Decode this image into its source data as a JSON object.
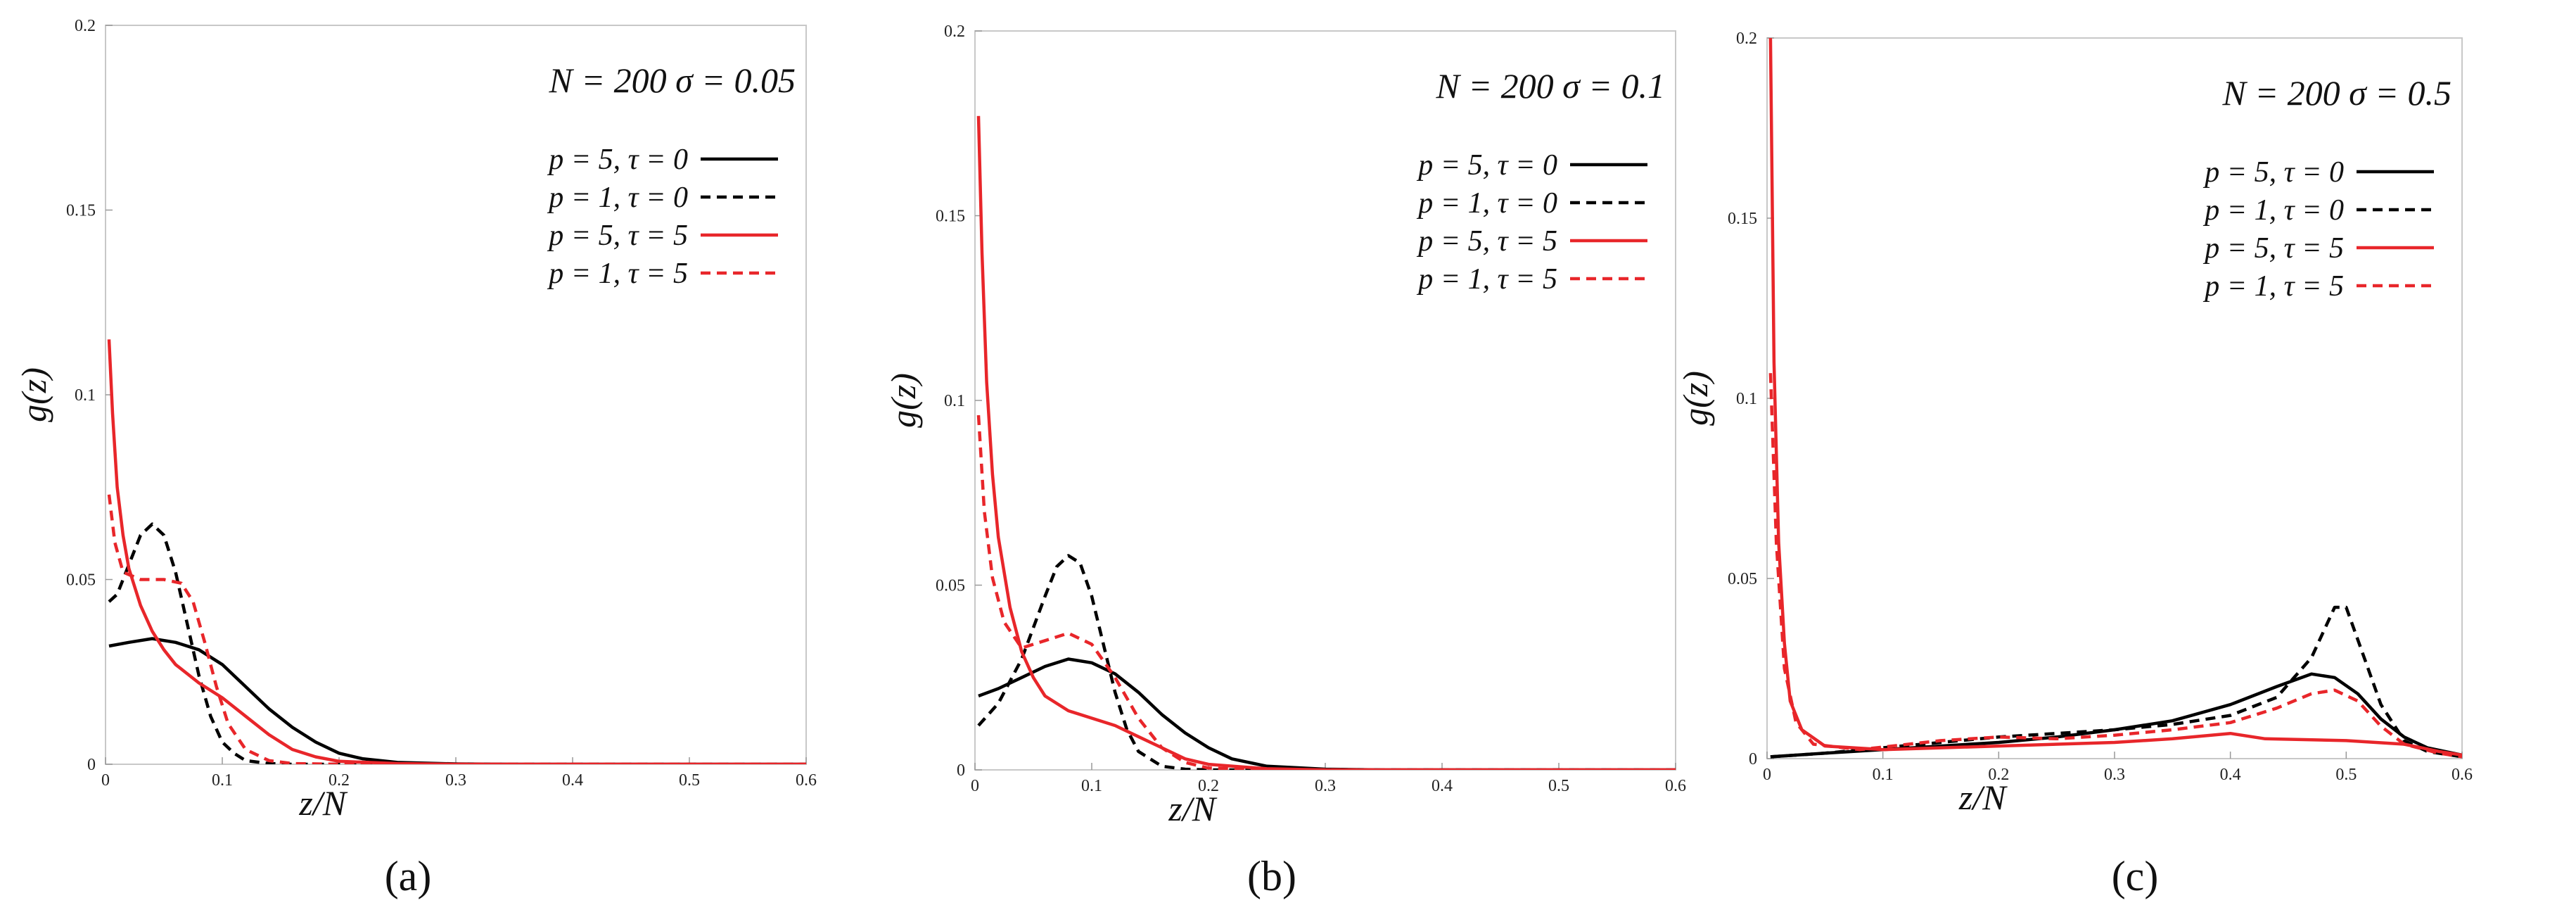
{
  "chart_data": [
    {
      "type": "line",
      "panel_label": "(a)",
      "title": "N = 200  σ = 0.05",
      "xlabel": "z/N",
      "ylabel": "g(z)",
      "xlim": [
        0,
        0.6
      ],
      "ylim": [
        0,
        0.2
      ],
      "xticks": [
        "0",
        "0.1",
        "0.2",
        "0.3",
        "0.4",
        "0.5",
        "0.6"
      ],
      "yticks": [
        "0",
        "0.05",
        "0.1",
        "0.15",
        "0.2"
      ],
      "legend_position": "top-right",
      "series": [
        {
          "name": "p = 5, τ = 0",
          "color": "#000000",
          "dash": "solid",
          "points": [
            [
              0.003,
              0.032
            ],
            [
              0.02,
              0.033
            ],
            [
              0.04,
              0.034
            ],
            [
              0.06,
              0.033
            ],
            [
              0.08,
              0.031
            ],
            [
              0.1,
              0.027
            ],
            [
              0.12,
              0.021
            ],
            [
              0.14,
              0.015
            ],
            [
              0.16,
              0.01
            ],
            [
              0.18,
              0.006
            ],
            [
              0.2,
              0.003
            ],
            [
              0.22,
              0.0015
            ],
            [
              0.25,
              0.0005
            ],
            [
              0.3,
              0.0001
            ],
            [
              0.35,
              0
            ],
            [
              0.6,
              0
            ]
          ]
        },
        {
          "name": "p = 1, τ = 0",
          "color": "#000000",
          "dash": "dashed",
          "points": [
            [
              0.003,
              0.044
            ],
            [
              0.01,
              0.046
            ],
            [
              0.02,
              0.054
            ],
            [
              0.03,
              0.062
            ],
            [
              0.04,
              0.065
            ],
            [
              0.05,
              0.062
            ],
            [
              0.06,
              0.052
            ],
            [
              0.07,
              0.038
            ],
            [
              0.08,
              0.024
            ],
            [
              0.09,
              0.013
            ],
            [
              0.1,
              0.006
            ],
            [
              0.11,
              0.003
            ],
            [
              0.12,
              0.001
            ],
            [
              0.14,
              0.0002
            ],
            [
              0.16,
              0
            ],
            [
              0.6,
              0
            ]
          ]
        },
        {
          "name": "p = 5, τ = 5",
          "color": "#e8262a",
          "dash": "solid",
          "points": [
            [
              0.003,
              0.115
            ],
            [
              0.006,
              0.095
            ],
            [
              0.01,
              0.075
            ],
            [
              0.015,
              0.062
            ],
            [
              0.02,
              0.053
            ],
            [
              0.03,
              0.043
            ],
            [
              0.04,
              0.036
            ],
            [
              0.05,
              0.031
            ],
            [
              0.06,
              0.027
            ],
            [
              0.08,
              0.022
            ],
            [
              0.1,
              0.018
            ],
            [
              0.12,
              0.013
            ],
            [
              0.14,
              0.008
            ],
            [
              0.16,
              0.004
            ],
            [
              0.18,
              0.002
            ],
            [
              0.2,
              0.0008
            ],
            [
              0.25,
              0.0002
            ],
            [
              0.3,
              0
            ],
            [
              0.6,
              0
            ]
          ]
        },
        {
          "name": "p = 1, τ = 5",
          "color": "#e8262a",
          "dash": "dashed",
          "points": [
            [
              0.003,
              0.073
            ],
            [
              0.008,
              0.06
            ],
            [
              0.015,
              0.052
            ],
            [
              0.03,
              0.05
            ],
            [
              0.05,
              0.05
            ],
            [
              0.065,
              0.049
            ],
            [
              0.075,
              0.044
            ],
            [
              0.085,
              0.033
            ],
            [
              0.095,
              0.021
            ],
            [
              0.105,
              0.011
            ],
            [
              0.12,
              0.004
            ],
            [
              0.14,
              0.001
            ],
            [
              0.16,
              0.0002
            ],
            [
              0.2,
              0
            ],
            [
              0.6,
              0
            ]
          ]
        }
      ]
    },
    {
      "type": "line",
      "panel_label": "(b)",
      "title": "N = 200  σ = 0.1",
      "xlabel": "z/N",
      "ylabel": "g(z)",
      "xlim": [
        0,
        0.6
      ],
      "ylim": [
        0,
        0.2
      ],
      "xticks": [
        "0",
        "0.1",
        "0.2",
        "0.3",
        "0.4",
        "0.5",
        "0.6"
      ],
      "yticks": [
        "0",
        "0.05",
        "0.1",
        "0.15",
        "0.2"
      ],
      "legend_position": "top-right",
      "series": [
        {
          "name": "p = 5, τ = 0",
          "color": "#000000",
          "dash": "solid",
          "points": [
            [
              0.003,
              0.02
            ],
            [
              0.02,
              0.022
            ],
            [
              0.04,
              0.025
            ],
            [
              0.06,
              0.028
            ],
            [
              0.08,
              0.03
            ],
            [
              0.1,
              0.029
            ],
            [
              0.12,
              0.026
            ],
            [
              0.14,
              0.021
            ],
            [
              0.16,
              0.015
            ],
            [
              0.18,
              0.01
            ],
            [
              0.2,
              0.006
            ],
            [
              0.22,
              0.003
            ],
            [
              0.25,
              0.001
            ],
            [
              0.3,
              0.0002
            ],
            [
              0.35,
              0
            ],
            [
              0.6,
              0
            ]
          ]
        },
        {
          "name": "p = 1, τ = 0",
          "color": "#000000",
          "dash": "dashed",
          "points": [
            [
              0.003,
              0.012
            ],
            [
              0.02,
              0.018
            ],
            [
              0.04,
              0.03
            ],
            [
              0.06,
              0.047
            ],
            [
              0.07,
              0.055
            ],
            [
              0.08,
              0.058
            ],
            [
              0.09,
              0.056
            ],
            [
              0.1,
              0.047
            ],
            [
              0.11,
              0.034
            ],
            [
              0.12,
              0.021
            ],
            [
              0.13,
              0.011
            ],
            [
              0.14,
              0.005
            ],
            [
              0.16,
              0.001
            ],
            [
              0.18,
              0.0002
            ],
            [
              0.2,
              0
            ],
            [
              0.6,
              0
            ]
          ]
        },
        {
          "name": "p = 5, τ = 5",
          "color": "#e8262a",
          "dash": "solid",
          "points": [
            [
              0.003,
              0.177
            ],
            [
              0.006,
              0.14
            ],
            [
              0.01,
              0.105
            ],
            [
              0.015,
              0.08
            ],
            [
              0.02,
              0.063
            ],
            [
              0.03,
              0.044
            ],
            [
              0.04,
              0.032
            ],
            [
              0.05,
              0.025
            ],
            [
              0.06,
              0.02
            ],
            [
              0.08,
              0.016
            ],
            [
              0.1,
              0.014
            ],
            [
              0.12,
              0.012
            ],
            [
              0.14,
              0.009
            ],
            [
              0.16,
              0.006
            ],
            [
              0.18,
              0.003
            ],
            [
              0.2,
              0.0015
            ],
            [
              0.25,
              0.0003
            ],
            [
              0.3,
              0
            ],
            [
              0.6,
              0
            ]
          ]
        },
        {
          "name": "p = 1, τ = 5",
          "color": "#e8262a",
          "dash": "dashed",
          "points": [
            [
              0.003,
              0.096
            ],
            [
              0.008,
              0.07
            ],
            [
              0.015,
              0.052
            ],
            [
              0.025,
              0.04
            ],
            [
              0.04,
              0.033
            ],
            [
              0.06,
              0.035
            ],
            [
              0.08,
              0.037
            ],
            [
              0.1,
              0.034
            ],
            [
              0.12,
              0.025
            ],
            [
              0.14,
              0.014
            ],
            [
              0.16,
              0.006
            ],
            [
              0.18,
              0.002
            ],
            [
              0.2,
              0.0005
            ],
            [
              0.25,
              0
            ],
            [
              0.6,
              0
            ]
          ]
        }
      ]
    },
    {
      "type": "line",
      "panel_label": "(c)",
      "title": "N = 200  σ = 0.5",
      "xlabel": "z/N",
      "ylabel": "g(z)",
      "xlim": [
        0,
        0.6
      ],
      "ylim": [
        0,
        0.2
      ],
      "xticks": [
        "0",
        "0.1",
        "0.2",
        "0.3",
        "0.4",
        "0.5",
        "0.6"
      ],
      "yticks": [
        "0",
        "0.05",
        "0.1",
        "0.15",
        "0.2"
      ],
      "legend_position": "top-right",
      "series": [
        {
          "name": "p = 5, τ = 0",
          "color": "#000000",
          "dash": "solid",
          "points": [
            [
              0.003,
              0.0005
            ],
            [
              0.05,
              0.0015
            ],
            [
              0.1,
              0.0025
            ],
            [
              0.15,
              0.0035
            ],
            [
              0.2,
              0.0045
            ],
            [
              0.25,
              0.006
            ],
            [
              0.3,
              0.008
            ],
            [
              0.35,
              0.0105
            ],
            [
              0.4,
              0.015
            ],
            [
              0.44,
              0.02
            ],
            [
              0.47,
              0.0235
            ],
            [
              0.49,
              0.0225
            ],
            [
              0.51,
              0.018
            ],
            [
              0.53,
              0.011
            ],
            [
              0.55,
              0.006
            ],
            [
              0.57,
              0.003
            ],
            [
              0.6,
              0.001
            ]
          ]
        },
        {
          "name": "p = 1, τ = 0",
          "color": "#000000",
          "dash": "dashed",
          "points": [
            [
              0.003,
              0.0005
            ],
            [
              0.05,
              0.0015
            ],
            [
              0.1,
              0.003
            ],
            [
              0.15,
              0.0045
            ],
            [
              0.2,
              0.006
            ],
            [
              0.25,
              0.007
            ],
            [
              0.3,
              0.008
            ],
            [
              0.35,
              0.0095
            ],
            [
              0.4,
              0.012
            ],
            [
              0.44,
              0.017
            ],
            [
              0.47,
              0.028
            ],
            [
              0.49,
              0.042
            ],
            [
              0.5,
              0.042
            ],
            [
              0.51,
              0.033
            ],
            [
              0.53,
              0.015
            ],
            [
              0.55,
              0.005
            ],
            [
              0.57,
              0.002
            ],
            [
              0.6,
              0.0005
            ]
          ]
        },
        {
          "name": "p = 5, τ = 5",
          "color": "#e8262a",
          "dash": "solid",
          "points": [
            [
              0.003,
              0.2
            ],
            [
              0.006,
              0.11
            ],
            [
              0.01,
              0.06
            ],
            [
              0.015,
              0.032
            ],
            [
              0.02,
              0.016
            ],
            [
              0.03,
              0.008
            ],
            [
              0.05,
              0.0035
            ],
            [
              0.1,
              0.0025
            ],
            [
              0.2,
              0.0035
            ],
            [
              0.3,
              0.0045
            ],
            [
              0.35,
              0.0055
            ],
            [
              0.4,
              0.007
            ],
            [
              0.43,
              0.0055
            ],
            [
              0.5,
              0.005
            ],
            [
              0.55,
              0.004
            ],
            [
              0.58,
              0.002
            ],
            [
              0.6,
              0.001
            ]
          ]
        },
        {
          "name": "p = 1, τ = 5",
          "color": "#e8262a",
          "dash": "dashed",
          "points": [
            [
              0.003,
              0.107
            ],
            [
              0.008,
              0.06
            ],
            [
              0.015,
              0.025
            ],
            [
              0.025,
              0.01
            ],
            [
              0.04,
              0.004
            ],
            [
              0.08,
              0.0025
            ],
            [
              0.15,
              0.005
            ],
            [
              0.2,
              0.006
            ],
            [
              0.25,
              0.0055
            ],
            [
              0.3,
              0.0065
            ],
            [
              0.35,
              0.008
            ],
            [
              0.4,
              0.01
            ],
            [
              0.44,
              0.014
            ],
            [
              0.47,
              0.018
            ],
            [
              0.49,
              0.019
            ],
            [
              0.51,
              0.016
            ],
            [
              0.53,
              0.009
            ],
            [
              0.55,
              0.004
            ],
            [
              0.58,
              0.0015
            ],
            [
              0.6,
              0.0005
            ]
          ]
        }
      ]
    }
  ]
}
